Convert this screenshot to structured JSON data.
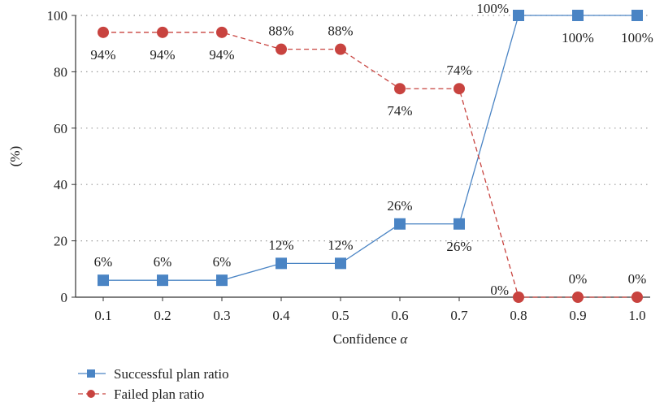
{
  "chart_data": {
    "type": "line",
    "xlabel": "Confidence α",
    "ylabel": "(%)",
    "categories": [
      "0.1",
      "0.2",
      "0.3",
      "0.4",
      "0.5",
      "0.6",
      "0.7",
      "0.8",
      "0.9",
      "1.0"
    ],
    "ylim": [
      0,
      100
    ],
    "yticks": [
      "0",
      "20",
      "40",
      "60",
      "80",
      "100"
    ],
    "grid": "horizontal dotted",
    "legend_position": "bottom-left",
    "series": [
      {
        "name": "Successful plan ratio",
        "values": [
          6,
          6,
          6,
          12,
          12,
          26,
          26,
          100,
          100,
          100
        ],
        "labels": [
          "6%",
          "6%",
          "6%",
          "12%",
          "12%",
          "26%",
          "26%",
          "100%",
          "100%",
          "100%"
        ],
        "label_side": [
          "above",
          "above",
          "above",
          "above",
          "above",
          "above",
          "below",
          "left",
          "below",
          "below"
        ],
        "color": "#4a84c4",
        "marker": "square",
        "line_style": "solid"
      },
      {
        "name": "Failed plan ratio",
        "values": [
          94,
          94,
          94,
          88,
          88,
          74,
          74,
          0,
          0,
          0
        ],
        "labels": [
          "94%",
          "94%",
          "94%",
          "88%",
          "88%",
          "74%",
          "74%",
          "0%",
          "0%",
          "0%"
        ],
        "label_side": [
          "below",
          "below",
          "below",
          "above",
          "above",
          "below",
          "above",
          "left",
          "above",
          "above"
        ],
        "color": "#c8433f",
        "marker": "circle",
        "line_style": "dashed"
      }
    ]
  }
}
